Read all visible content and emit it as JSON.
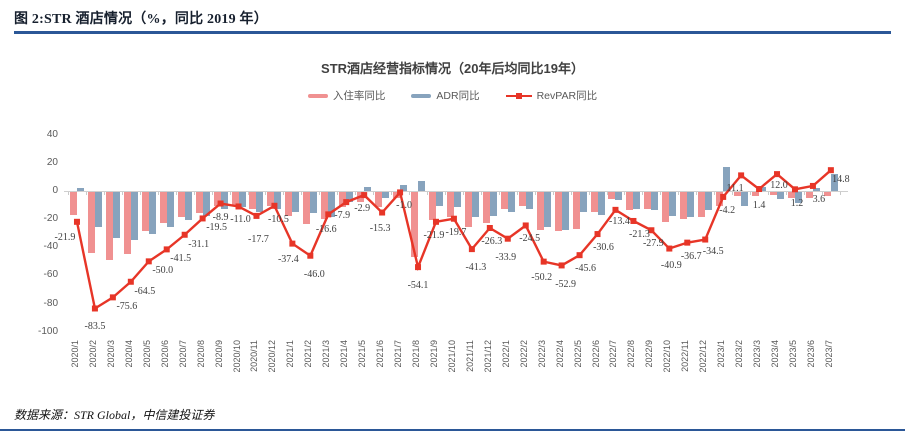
{
  "figure": {
    "caption": "图 2:STR 酒店情况（%，同比 2019 年）",
    "source": "数据来源：STR Global，中信建投证券",
    "rule_color": "#2b5797"
  },
  "chart_data": {
    "type": "bar",
    "title": "STR酒店经营指标情况（20年后均同比19年）",
    "legend_position": "top",
    "grid": false,
    "ylim": [
      -100,
      40
    ],
    "yticks": [
      40,
      20,
      0,
      -20,
      -40,
      -60,
      -80,
      -100
    ],
    "categories": [
      "2020/1",
      "2020/2",
      "2020/3",
      "2020/4",
      "2020/5",
      "2020/6",
      "2020/7",
      "2020/8",
      "2020/9",
      "2020/10",
      "2020/11",
      "2020/12",
      "2021/1",
      "2021/2",
      "2021/3",
      "2021/4",
      "2021/5",
      "2021/6",
      "2021/7",
      "2021/8",
      "2021/9",
      "2021/10",
      "2021/11",
      "2021/12",
      "2022/1",
      "2022/2",
      "2022/3",
      "2022/4",
      "2022/5",
      "2022/6",
      "2022/7",
      "2022/8",
      "2022/9",
      "2022/10",
      "2022/11",
      "2022/12",
      "2023/1",
      "2023/2",
      "2023/3",
      "2023/4",
      "2023/5",
      "2023/6",
      "2023/7"
    ],
    "series": [
      {
        "name": "入住率同比",
        "kind": "bar",
        "color": "#f09191",
        "values_estimated": true,
        "values": [
          -16,
          -43,
          -48,
          -44,
          -28,
          -22,
          -18,
          -15,
          -10,
          -9,
          -12,
          -10,
          -17,
          -23,
          -19,
          -11,
          -7,
          -11,
          -4,
          -46,
          -20,
          -18,
          -25,
          -22,
          -12,
          -10,
          -27,
          -28,
          -26,
          -14,
          -5,
          -13,
          -12,
          -21,
          -19,
          -18,
          -10,
          -3,
          -3,
          -2,
          -4,
          -4,
          -3
        ]
      },
      {
        "name": "ADR同比",
        "kind": "bar",
        "color": "#87a3bd",
        "values_estimated": true,
        "values": [
          2,
          -25,
          -33,
          -34,
          -30,
          -25,
          -20,
          -17,
          -12,
          -11,
          -14,
          -12,
          -14,
          -15,
          -18,
          -7,
          3,
          -4,
          4,
          7,
          -10,
          -11,
          -18,
          -17,
          -14,
          -12,
          -25,
          -27,
          -14,
          -16,
          -6,
          -12,
          -13,
          -17,
          -18,
          -13,
          17,
          -10,
          3,
          -5,
          -8,
          2,
          12
        ]
      },
      {
        "name": "RevPAR同比",
        "kind": "line",
        "color": "#e73527",
        "labeled": true,
        "values": [
          -21.9,
          -83.5,
          -75.6,
          -64.5,
          -50.0,
          -41.5,
          -31.1,
          -19.5,
          -8.9,
          -11.0,
          -17.7,
          -10.5,
          -37.4,
          -46.0,
          -16.6,
          -7.9,
          -2.9,
          -15.3,
          -1.0,
          -54.1,
          -21.9,
          -19.7,
          -41.3,
          -26.3,
          -33.9,
          -24.5,
          -50.2,
          -52.9,
          -45.6,
          -30.6,
          -13.4,
          -21.3,
          -27.9,
          -40.9,
          -36.7,
          -34.5,
          -4.2,
          11.1,
          1.4,
          12.0,
          1.2,
          3.6,
          14.8
        ]
      }
    ]
  }
}
